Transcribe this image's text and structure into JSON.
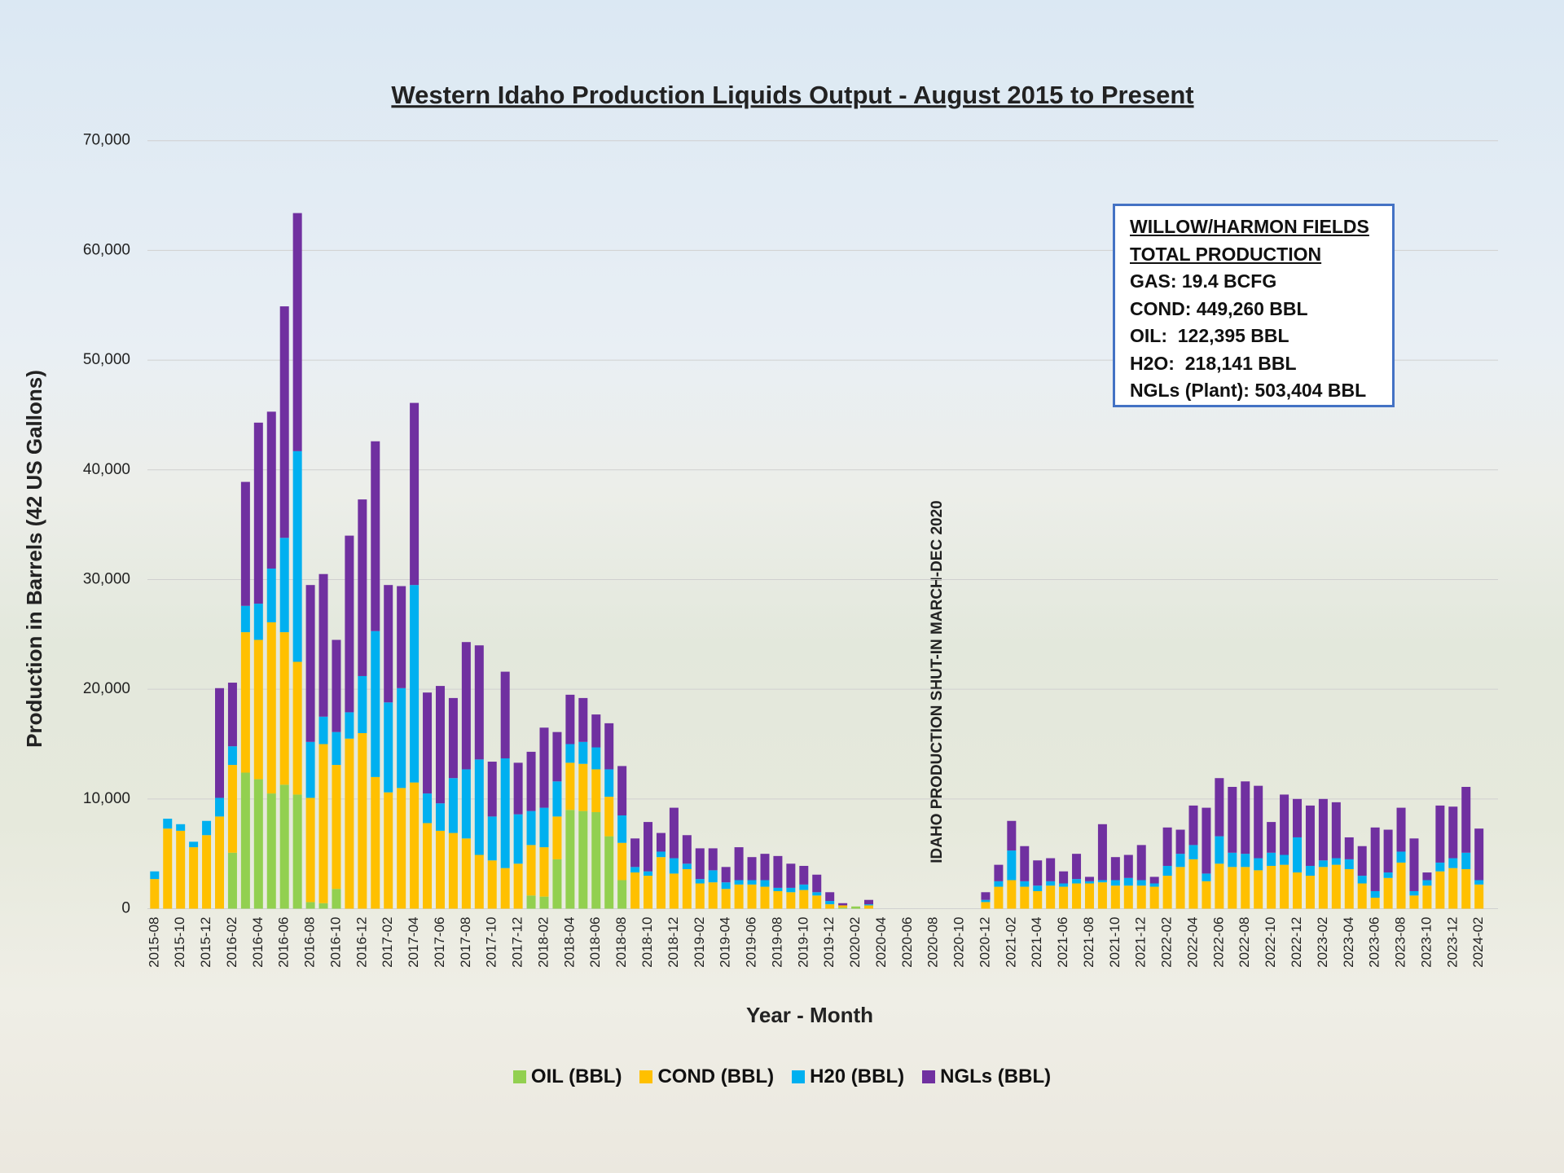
{
  "chart_data": {
    "type": "stacked_bar",
    "title": "Western Idaho Production Liquids Output - August 2015 to Present",
    "y_label": "Production in Barrels (42 US Gallons)",
    "x_label": "Year -  Month",
    "annotation": "IDAHO PRODUCTION SHUT-IN MARCH-DEC 2020",
    "notes": [
      "WILLOW/HARMON FIELDS",
      "TOTAL PRODUCTION",
      "GAS: 19.4 BCFG",
      "COND: 449,260 BBL",
      "OIL:  122,395 BBL",
      "H2O:  218,141 BBL",
      "NGLs (Plant): 503,404 BBL"
    ],
    "categories": [
      "2015-08",
      null,
      "2015-10",
      null,
      "2015-12",
      null,
      "2016-02",
      null,
      "2016-04",
      null,
      "2016-06",
      null,
      "2016-08",
      null,
      "2016-10",
      null,
      "2016-12",
      null,
      "2017-02",
      null,
      "2017-04",
      null,
      "2017-06",
      null,
      "2017-08",
      null,
      "2017-10",
      null,
      "2017-12",
      null,
      "2018-02",
      null,
      "2018-04",
      null,
      "2018-06",
      null,
      "2018-08",
      null,
      "2018-10",
      null,
      "2018-12",
      null,
      "2019-02",
      null,
      "2019-04",
      null,
      "2019-06",
      null,
      "2019-08",
      null,
      "2019-10",
      null,
      "2019-12",
      null,
      "2020-02",
      null,
      "2020-04",
      null,
      "2020-06",
      null,
      "2020-08",
      null,
      "2020-10",
      null,
      "2020-12",
      null,
      "2021-02",
      null,
      "2021-04",
      null,
      "2021-06",
      null,
      "2021-08",
      null,
      "2021-10",
      null,
      "2021-12",
      null,
      "2022-02",
      null,
      "2022-04",
      null,
      "2022-06",
      null,
      "2022-08",
      null,
      "2022-10",
      null,
      "2022-12",
      null,
      "2023-02",
      null,
      "2023-04",
      null,
      "2023-06",
      null,
      "2023-08",
      null,
      "2023-10",
      null,
      "2023-12",
      null,
      "2024-02"
    ],
    "series": [
      {
        "name": "OIL (BBL)",
        "color": "#92d050",
        "values": [
          0,
          0,
          0,
          0,
          0,
          0,
          5100,
          12400,
          11800,
          10500,
          11300,
          10400,
          600,
          500,
          1800,
          0,
          0,
          0,
          0,
          0,
          0,
          0,
          0,
          0,
          0,
          0,
          0,
          0,
          0,
          1200,
          1100,
          4500,
          9000,
          8900,
          8800,
          6600,
          2600,
          0,
          0,
          0,
          0,
          0,
          0,
          0,
          0,
          0,
          0,
          0,
          0,
          0,
          0,
          0,
          0,
          100,
          200,
          0,
          0,
          0,
          0,
          0,
          0,
          0,
          0,
          0,
          0,
          0,
          0,
          0,
          0,
          0,
          0,
          0,
          0,
          0,
          0,
          0,
          0,
          0,
          0,
          0,
          0,
          0,
          0,
          0,
          0,
          0,
          0,
          0,
          0,
          0,
          0,
          0,
          0,
          0,
          0,
          0,
          0,
          0,
          0,
          0,
          0,
          0,
          0
        ]
      },
      {
        "name": "COND (BBL)",
        "color": "#ffc000",
        "values": [
          2700,
          7300,
          7100,
          5600,
          6700,
          8400,
          8000,
          12800,
          12700,
          15600,
          13900,
          12100,
          9500,
          14500,
          11300,
          15500,
          16000,
          12000,
          10600,
          11000,
          11500,
          7800,
          7100,
          6900,
          6400,
          4900,
          4400,
          3700,
          4100,
          4600,
          4500,
          3900,
          4300,
          4300,
          3900,
          3600,
          3400,
          3300,
          3000,
          4700,
          3200,
          3600,
          2300,
          2400,
          1800,
          2200,
          2200,
          2000,
          1600,
          1500,
          1700,
          1200,
          400,
          200,
          0,
          300,
          0,
          0,
          0,
          0,
          0,
          0,
          0,
          0,
          600,
          2000,
          2600,
          2000,
          1600,
          2100,
          2000,
          2300,
          2300,
          2400,
          2100,
          2100,
          2100,
          2000,
          3000,
          3800,
          4500,
          2500,
          4100,
          3800,
          3800,
          3500,
          3900,
          4000,
          3300,
          3000,
          3800,
          4000,
          3600,
          2300,
          1000,
          2800,
          4200,
          1200,
          2100,
          3400,
          3700,
          3600,
          2200
        ]
      },
      {
        "name": "H20 (BBL)",
        "color": "#00b0f0",
        "values": [
          700,
          900,
          600,
          500,
          1300,
          1700,
          1700,
          2400,
          3300,
          4900,
          8600,
          19200,
          5100,
          2500,
          3000,
          2400,
          5200,
          13300,
          8200,
          9100,
          18000,
          2700,
          2500,
          5000,
          6300,
          8700,
          4000,
          10000,
          4500,
          3100,
          3600,
          3200,
          1700,
          2000,
          2000,
          2500,
          2500,
          500,
          400,
          500,
          1400,
          500,
          400,
          1100,
          600,
          400,
          400,
          600,
          300,
          400,
          500,
          300,
          300,
          0,
          0,
          100,
          0,
          0,
          0,
          0,
          0,
          0,
          0,
          0,
          200,
          500,
          2700,
          500,
          500,
          400,
          300,
          400,
          200,
          200,
          500,
          700,
          500,
          300,
          900,
          1200,
          1300,
          700,
          2500,
          1300,
          1200,
          1100,
          1200,
          900,
          3200,
          900,
          600,
          600,
          900,
          700,
          600,
          500,
          1000,
          400,
          500,
          800,
          900,
          1500,
          400
        ]
      },
      {
        "name": "NGLs (BBL)",
        "color": "#7030a0",
        "values": [
          0,
          0,
          0,
          0,
          0,
          10000,
          5800,
          11300,
          16500,
          14300,
          21100,
          21700,
          14300,
          13000,
          8400,
          16100,
          16100,
          17300,
          10700,
          9300,
          16600,
          9200,
          10700,
          7300,
          11600,
          10400,
          5000,
          7900,
          4700,
          5400,
          7300,
          4500,
          4500,
          4000,
          3000,
          4200,
          4500,
          2600,
          4500,
          1700,
          4600,
          2600,
          2800,
          2000,
          1400,
          3000,
          2100,
          2400,
          2900,
          2200,
          1700,
          1600,
          800,
          200,
          0,
          400,
          0,
          0,
          0,
          0,
          0,
          0,
          0,
          0,
          700,
          1500,
          2700,
          3200,
          2300,
          2100,
          1100,
          2300,
          400,
          5100,
          2100,
          2100,
          3200,
          600,
          3500,
          2200,
          3600,
          6000,
          5300,
          6000,
          6600,
          6600,
          2800,
          5500,
          3500,
          5500,
          5600,
          5100,
          2000,
          2700,
          5800,
          3900,
          4000,
          4800,
          700,
          5200,
          4700,
          6000,
          4700
        ]
      }
    ],
    "ylim": [
      0,
      70000
    ],
    "yticks": [
      0,
      {
        "value": 10000,
        "label": "10,000"
      },
      {
        "value": 20000,
        "label": "20,000"
      },
      {
        "value": 30000,
        "label": "30,000"
      },
      {
        "value": 40000,
        "label": "40,000"
      },
      {
        "value": 50000,
        "label": "50,000"
      },
      {
        "value": 60000,
        "label": "60,000"
      },
      {
        "value": 70000,
        "label": "70,000"
      }
    ],
    "grid": true,
    "legend": "bottom"
  }
}
